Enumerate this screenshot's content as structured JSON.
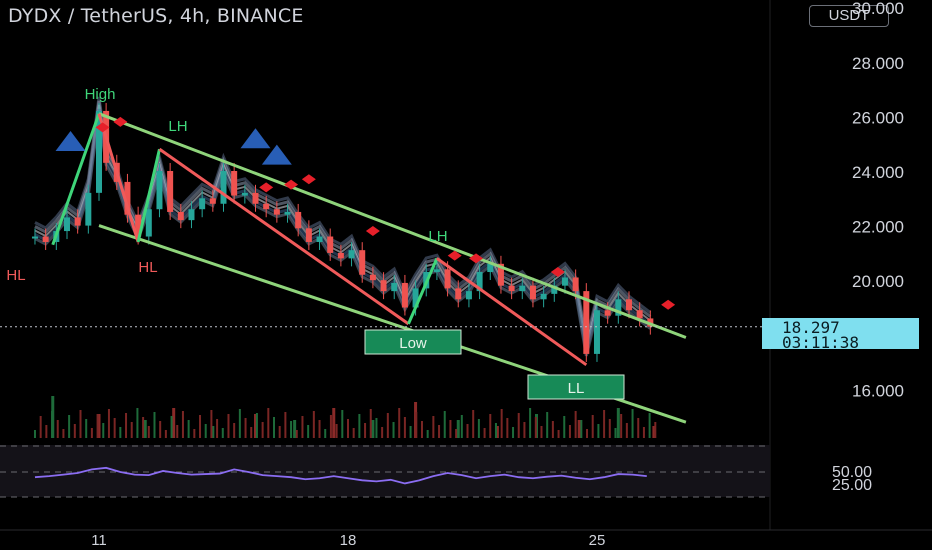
{
  "header": {
    "title": "DYDX / TetherUS, 4h, BINANCE",
    "currency": "USDT"
  },
  "price_tag": {
    "price": "18.297",
    "countdown": "03:11:38"
  },
  "colors": {
    "background": "#000000",
    "channel": "#8fd47b",
    "up_candle": "#26a69a",
    "down_candle": "#ef5350",
    "zigzag_up": "#3fd67a",
    "zigzag_down": "#f05a5a",
    "rsi_line": "#8b6df2",
    "price_tag": "#7fdfef",
    "marker_diamond": "#e6202a",
    "marker_triangle": "#2f6fd6"
  },
  "chart_data": [
    {
      "type": "line",
      "title": "DYDX / TetherUS, 4h, BINANCE",
      "y_axis": {
        "ticks": [
          "30.000",
          "28.000",
          "26.000",
          "24.000",
          "22.000",
          "20.000",
          "16.000"
        ],
        "range": [
          15.0,
          30.0
        ],
        "unit": "USDT"
      },
      "x_axis": {
        "ticks": [
          "11",
          "18",
          "25"
        ]
      },
      "last_price": 18.297,
      "series": [
        {
          "x": [
            9.2,
            9.5,
            9.8,
            10.1,
            10.4,
            10.7,
            11.0,
            11.2,
            11.5,
            11.8,
            12.1,
            12.4,
            12.7,
            13.0,
            13.3,
            13.6,
            13.9,
            14.2,
            14.5,
            14.8,
            15.1,
            15.4,
            15.7,
            16.0,
            16.3,
            16.6,
            16.9,
            17.2,
            17.5,
            17.8,
            18.1,
            18.4,
            18.7,
            19.0,
            19.3,
            19.6,
            19.9,
            20.2,
            20.5,
            20.8,
            21.1,
            21.4,
            21.7,
            22.0,
            22.3,
            22.6,
            22.9,
            23.2,
            23.5,
            23.8,
            24.1,
            24.4,
            24.7,
            25.0,
            25.3,
            25.6,
            25.9,
            26.2,
            26.5
          ],
          "values": [
            21.6,
            21.4,
            21.8,
            22.3,
            22.0,
            23.2,
            26.2,
            24.3,
            23.6,
            22.4,
            21.6,
            22.6,
            24.0,
            22.5,
            22.2,
            22.6,
            23.0,
            22.8,
            24.0,
            23.1,
            23.2,
            22.8,
            22.6,
            22.4,
            22.5,
            21.9,
            21.4,
            21.6,
            21.0,
            20.8,
            21.1,
            20.2,
            20.0,
            19.6,
            19.9,
            19.0,
            19.7,
            20.3,
            20.4,
            19.7,
            19.3,
            19.6,
            20.3,
            20.6,
            19.8,
            19.6,
            19.8,
            19.3,
            19.5,
            19.8,
            20.1,
            19.6,
            17.3,
            18.9,
            18.7,
            19.3,
            18.9,
            18.6,
            18.3
          ]
        },
        {
          "x": [
            9.7,
            11.0,
            12.3,
            13.1,
            14.2,
            15.4,
            16.5,
            17.6,
            18.7,
            19.9,
            21.1,
            22.2,
            23.3,
            24.5,
            25.6,
            26.6
          ],
          "values": [
            0.7,
            0.4,
            0.3,
            0.5,
            0.2,
            0.4,
            0.3,
            0.5,
            0.3,
            0.6,
            0.3,
            0.2,
            0.4,
            0.3,
            0.5,
            0.2
          ],
          "name": ""
        }
      ],
      "zigzag": {
        "x": [
          9.7,
          11.0,
          12.1,
          12.7,
          19.7,
          20.5,
          24.7
        ],
        "values": [
          21.3,
          26.1,
          21.4,
          24.8,
          18.4,
          20.8,
          16.9
        ]
      },
      "channel": {
        "upper": {
          "x": [
            11.0,
            27.5
          ],
          "values": [
            26.1,
            17.9
          ]
        },
        "lower": {
          "x": [
            11.0,
            27.5
          ],
          "values": [
            22.0,
            14.8
          ]
        }
      },
      "pivot_labels": [
        "High",
        "LH",
        "HL",
        "HL",
        "LH",
        "Low",
        "LL"
      ],
      "annotations": [
        "Low",
        "LL"
      ]
    },
    {
      "type": "line",
      "title": "",
      "y_axis": {
        "ticks": [
          "50.00",
          "25.00"
        ],
        "range": [
          0,
          100
        ]
      },
      "x_axis": {
        "ticks": [
          "11",
          "18",
          "25"
        ]
      },
      "series": [
        {
          "x": [
            9.2,
            9.6,
            10.0,
            10.4,
            10.8,
            11.2,
            11.6,
            12.0,
            12.4,
            12.8,
            13.2,
            13.6,
            14.0,
            14.4,
            14.8,
            15.2,
            15.6,
            16.0,
            16.4,
            16.8,
            17.2,
            17.6,
            18.0,
            18.4,
            18.8,
            19.2,
            19.6,
            20.0,
            20.4,
            20.8,
            21.2,
            21.6,
            22.0,
            22.4,
            22.8,
            23.2,
            23.6,
            24.0,
            24.4,
            24.8,
            25.2,
            25.6,
            26.0,
            26.4
          ],
          "values": [
            40,
            42,
            45,
            48,
            55,
            58,
            50,
            45,
            44,
            52,
            48,
            45,
            46,
            47,
            55,
            50,
            44,
            42,
            40,
            36,
            38,
            42,
            38,
            34,
            32,
            35,
            28,
            34,
            42,
            48,
            44,
            38,
            42,
            45,
            40,
            38,
            41,
            43,
            39,
            36,
            40,
            46,
            45,
            42
          ]
        }
      ]
    }
  ]
}
